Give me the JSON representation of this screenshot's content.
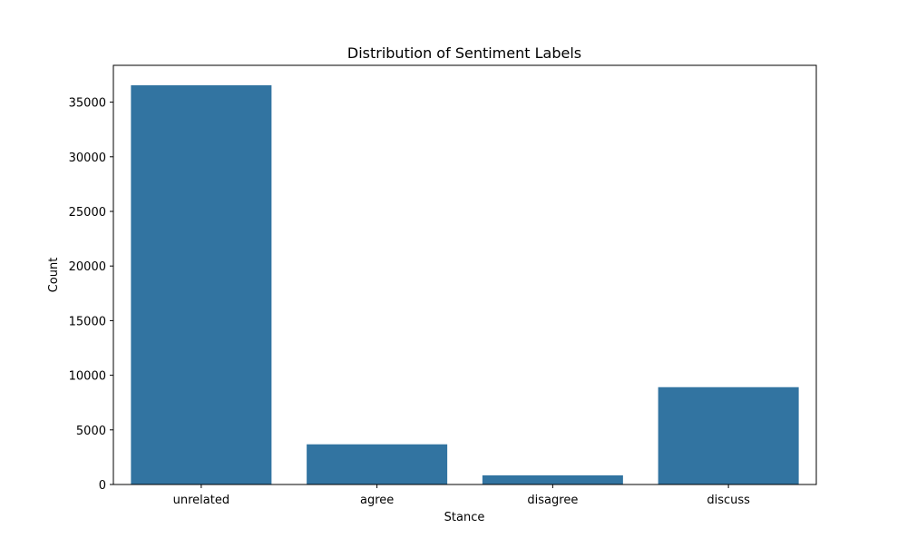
{
  "chart_data": {
    "type": "bar",
    "title": "Distribution of Sentiment Labels",
    "xlabel": "Stance",
    "ylabel": "Count",
    "categories": [
      "unrelated",
      "agree",
      "disagree",
      "discuss"
    ],
    "values": [
      36545,
      3678,
      840,
      8909
    ],
    "ylim": [
      0,
      38372
    ],
    "yticks": [
      0,
      5000,
      10000,
      15000,
      20000,
      25000,
      30000,
      35000
    ],
    "grid": false,
    "legend": "none",
    "bar_color": "#3274a1"
  }
}
